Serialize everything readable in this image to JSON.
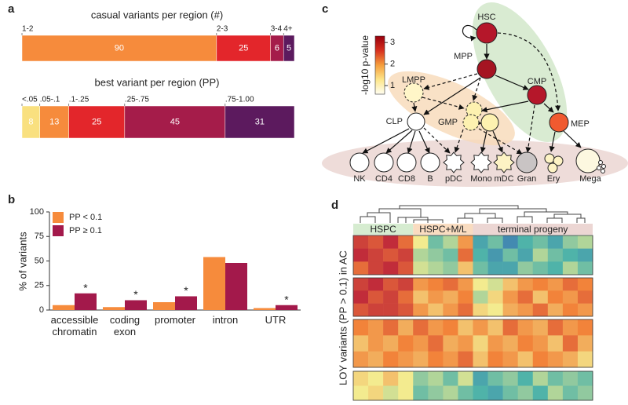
{
  "panel_labels": [
    "a",
    "b",
    "c",
    "d"
  ],
  "chart_data": [
    {
      "type": "stacked-bar",
      "title": "casual variants per region (#)",
      "categories": [
        "1-2",
        "2-3",
        "3-4",
        "4+"
      ],
      "values": [
        90,
        25,
        6,
        5
      ],
      "colors": [
        "#f68b3c",
        "#e3262b",
        "#a51c4a",
        "#5c1a5e"
      ]
    },
    {
      "type": "stacked-bar",
      "title": "best variant per region (PP)",
      "categories": [
        "<.05",
        ".05-.1",
        ".1-.25",
        ".25-.75",
        ".75-1.00"
      ],
      "values": [
        8,
        13,
        25,
        45,
        31
      ],
      "colors": [
        "#f9e07f",
        "#f68b3c",
        "#e3262b",
        "#a51c4a",
        "#5c1a5e"
      ]
    },
    {
      "type": "bar",
      "ylabel": "% of variants",
      "categories": [
        "accessible chromatin",
        "coding exon",
        "promoter",
        "intron",
        "UTR"
      ],
      "series": [
        {
          "name": "PP < 0.1",
          "color": "#f68b3c",
          "values": [
            5,
            3,
            8,
            54,
            2
          ]
        },
        {
          "name": "PP ≥ 0.1",
          "color": "#a3194b",
          "values": [
            17,
            10,
            14,
            48,
            5
          ]
        }
      ],
      "annotations": [
        "*",
        "*",
        "*",
        null,
        "*"
      ],
      "ylim": [
        0,
        100
      ],
      "yticks": [
        0,
        25,
        50,
        75,
        100
      ]
    },
    {
      "type": "heatmap",
      "ylabel": "LOY variants (PP > 0.1) in AC",
      "vlim": [
        0,
        1
      ],
      "colormap": [
        "#3b6fb6",
        "#4fb3a9",
        "#f3eb8f",
        "#f2833a",
        "#b5163a"
      ],
      "column_groups": [
        {
          "label": "HSPC",
          "span": 4,
          "color": "#d6ecd0"
        },
        {
          "label": "HSPC+M/L",
          "span": 4,
          "color": "#f9dcc0"
        },
        {
          "label": "terminal progeny",
          "span": 8,
          "color": "#ecd6d3"
        }
      ],
      "blocks": [
        {
          "values": [
            [
              0.9,
              0.85,
              0.95,
              0.8,
              0.5,
              0.3,
              0.4,
              0.7,
              0.2,
              0.3,
              0.1,
              0.25,
              0.3,
              0.2,
              0.35,
              0.4
            ],
            [
              0.95,
              0.9,
              0.85,
              0.9,
              0.4,
              0.35,
              0.3,
              0.8,
              0.25,
              0.15,
              0.3,
              0.2,
              0.4,
              0.3,
              0.25,
              0.2
            ],
            [
              0.8,
              0.9,
              0.95,
              0.85,
              0.45,
              0.4,
              0.35,
              0.6,
              0.3,
              0.2,
              0.2,
              0.35,
              0.3,
              0.25,
              0.4,
              0.3
            ]
          ]
        },
        {
          "values": [
            [
              0.9,
              0.95,
              0.85,
              0.9,
              0.7,
              0.75,
              0.8,
              0.7,
              0.5,
              0.45,
              0.6,
              0.7,
              0.75,
              0.7,
              0.8,
              0.75
            ],
            [
              0.95,
              0.85,
              0.9,
              0.8,
              0.6,
              0.7,
              0.65,
              0.75,
              0.4,
              0.55,
              0.7,
              0.8,
              0.6,
              0.75,
              0.7,
              0.8
            ],
            [
              0.85,
              0.9,
              0.9,
              0.85,
              0.7,
              0.6,
              0.7,
              0.8,
              0.55,
              0.5,
              0.65,
              0.7,
              0.8,
              0.65,
              0.75,
              0.7
            ]
          ]
        },
        {
          "values": [
            [
              0.75,
              0.7,
              0.8,
              0.65,
              0.8,
              0.7,
              0.75,
              0.6,
              0.7,
              0.6,
              0.8,
              0.7,
              0.65,
              0.8,
              0.7,
              0.75
            ],
            [
              0.6,
              0.7,
              0.65,
              0.75,
              0.7,
              0.8,
              0.65,
              0.7,
              0.55,
              0.7,
              0.65,
              0.75,
              0.7,
              0.6,
              0.8,
              0.65
            ],
            [
              0.7,
              0.65,
              0.75,
              0.7,
              0.65,
              0.75,
              0.7,
              0.8,
              0.6,
              0.75,
              0.7,
              0.6,
              0.75,
              0.7,
              0.65,
              0.55
            ]
          ]
        },
        {
          "values": [
            [
              0.55,
              0.5,
              0.6,
              0.5,
              0.35,
              0.4,
              0.3,
              0.45,
              0.2,
              0.3,
              0.35,
              0.25,
              0.4,
              0.3,
              0.35,
              0.3
            ],
            [
              0.5,
              0.55,
              0.45,
              0.5,
              0.3,
              0.35,
              0.4,
              0.3,
              0.25,
              0.2,
              0.3,
              0.35,
              0.25,
              0.4,
              0.3,
              0.35
            ]
          ]
        }
      ]
    }
  ],
  "diagram": {
    "colorbar": {
      "label": "-log10 p-value",
      "lim": [
        0.6,
        3.3
      ],
      "ticks": [
        1,
        2,
        3
      ],
      "colors": [
        "#fffef2",
        "#fde68a",
        "#f59e3c",
        "#d7301f",
        "#99000d"
      ]
    },
    "nodes": [
      {
        "label": "HSC",
        "color": "#b5172a"
      },
      {
        "label": "MPP",
        "color": "#a51422"
      },
      {
        "label": "LMPP",
        "color": "#fff6c8"
      },
      {
        "label": "CMP",
        "color": "#b5172a"
      },
      {
        "label": "CLP",
        "color": "#ffffff"
      },
      {
        "label": "GMP",
        "color": "#fdf1b0"
      },
      {
        "label": "MEP",
        "color": "#f05a30"
      },
      {
        "label": "NK",
        "color": "#ffffff"
      },
      {
        "label": "CD4",
        "color": "#ffffff"
      },
      {
        "label": "CD8",
        "color": "#ffffff"
      },
      {
        "label": "B",
        "color": "#ffffff"
      },
      {
        "label": "pDC",
        "color": "#ffffff"
      },
      {
        "label": "Mono",
        "color": "#ffffff"
      },
      {
        "label": "mDC",
        "color": "#fdf3c4"
      },
      {
        "label": "Gran",
        "color": "#c9c4c4"
      },
      {
        "label": "Ery",
        "color": "#fdf3c4"
      },
      {
        "label": "Mega",
        "color": "#fdf8e0"
      }
    ]
  }
}
